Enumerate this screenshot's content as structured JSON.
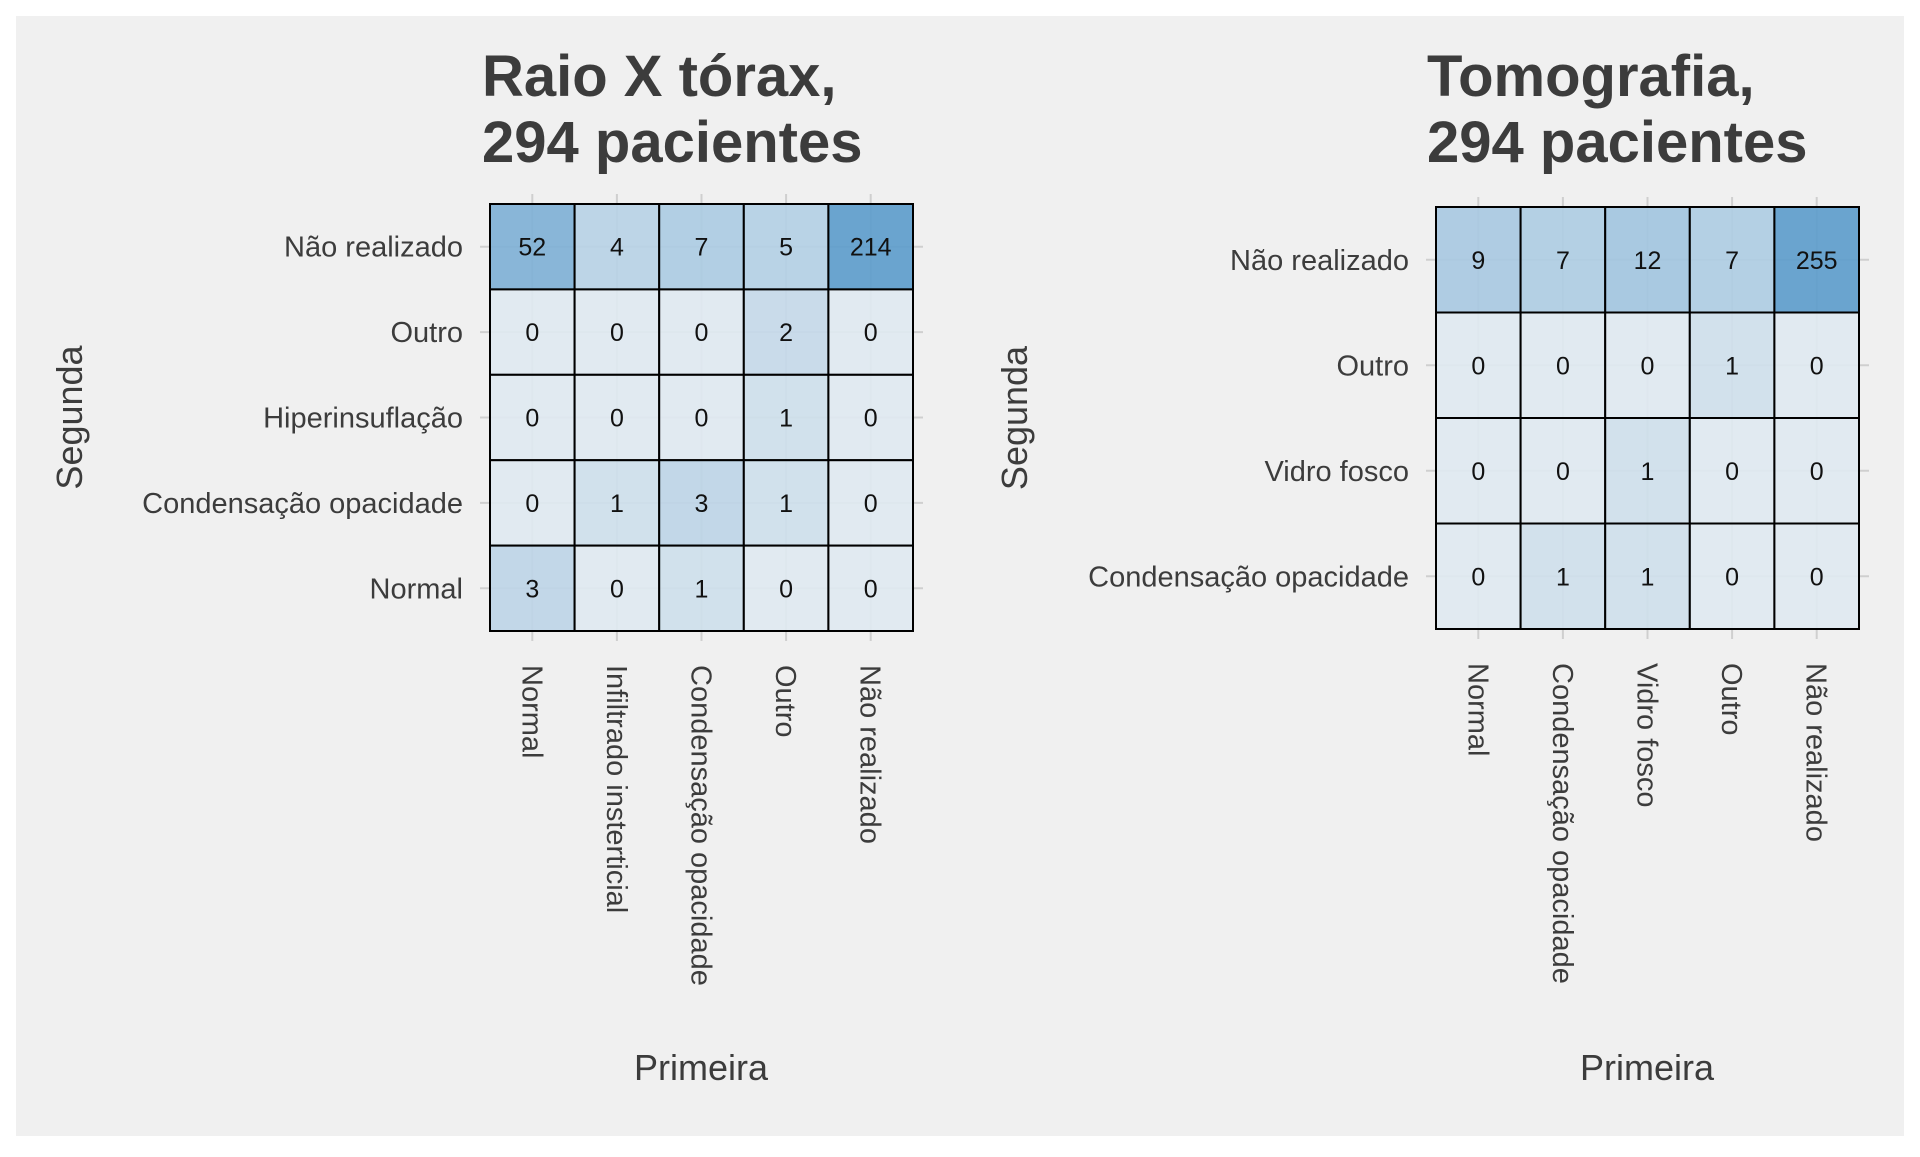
{
  "chart_data": [
    {
      "type": "heatmap",
      "title": "Raio X tórax,\n294 pacientes",
      "title_lines": [
        "Raio X tórax,",
        "294 pacientes"
      ],
      "xlabel": "Primeira",
      "ylabel": "Segunda",
      "x_categories": [
        "Normal",
        "Infiltrado insterticial",
        "Condensação opacidade",
        "Outro",
        "Não realizado"
      ],
      "y_categories": [
        "Não realizado",
        "Outro",
        "Hiperinsuflação",
        "Condensação opacidade",
        "Normal"
      ],
      "values": [
        [
          52,
          4,
          7,
          5,
          214
        ],
        [
          0,
          0,
          0,
          2,
          0
        ],
        [
          0,
          0,
          0,
          1,
          0
        ],
        [
          0,
          1,
          3,
          1,
          0
        ],
        [
          3,
          0,
          1,
          0,
          0
        ]
      ],
      "labels": [
        [
          "52",
          "4",
          "7",
          "5",
          "214"
        ],
        [
          "0",
          "0",
          "0",
          "2",
          "0"
        ],
        [
          "0",
          "0",
          "0",
          "1",
          "0"
        ],
        [
          "0",
          "1",
          "3",
          "1",
          "0"
        ],
        [
          "3",
          "0",
          "1",
          "0",
          "0"
        ]
      ],
      "grid": true,
      "legend": "none"
    },
    {
      "type": "heatmap",
      "title": "Tomografia,\n294 pacientes",
      "title_lines": [
        "Tomografia,",
        "294 pacientes"
      ],
      "xlabel": "Primeira",
      "ylabel": "Segunda",
      "x_categories": [
        "Normal",
        "Condensação opacidade",
        "Vidro fosco",
        "Outro",
        "Não realizado"
      ],
      "y_categories": [
        "Não realizado",
        "Outro",
        "Vidro fosco",
        "Condensação opacidade"
      ],
      "values": [
        [
          9,
          7,
          12,
          7,
          255
        ],
        [
          0,
          0,
          0,
          1,
          0
        ],
        [
          0,
          0,
          1,
          0,
          0
        ],
        [
          0,
          1,
          1,
          0,
          0
        ]
      ],
      "labels": [
        [
          "9",
          "7",
          "12",
          "7",
          "255"
        ],
        [
          "0",
          "0",
          "0",
          "1",
          "0"
        ],
        [
          "0",
          "0",
          "1",
          "0",
          "0"
        ],
        [
          "0",
          "1",
          "1",
          "0",
          "0"
        ]
      ],
      "grid": true,
      "legend": "none"
    }
  ],
  "colors": {
    "panel_background": "#f0f0f0",
    "outer_background": "#ffffff",
    "text": "#3c3c3c",
    "cell_text": "#111111",
    "cell_border": "#000000",
    "grid": "#cfcfcf",
    "color_low": "#dfe9f1",
    "color_high": "#5e9dcc"
  }
}
